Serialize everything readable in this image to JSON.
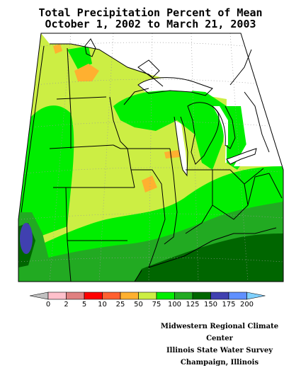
{
  "title": {
    "line1": "Total Precipitation Percent of Mean",
    "line2": "October 1, 2002 to March 21, 2003"
  },
  "legend": {
    "labels": [
      "0",
      "2",
      "5",
      "10",
      "25",
      "50",
      "75",
      "100",
      "125",
      "150",
      "175",
      "200"
    ],
    "colors": [
      "#c0c0c0",
      "#ffc0cb",
      "#e08080",
      "#ff0000",
      "#ff6030",
      "#ffb030",
      "#ccee44",
      "#00ee00",
      "#22aa22",
      "#006600",
      "#4040b0",
      "#6090ff",
      "#80d0ff"
    ]
  },
  "credits": {
    "line1": "Midwestern Regional Climate Center",
    "line2": "Illinois State Water Survey",
    "line3": "Champaign, Illinois"
  }
}
